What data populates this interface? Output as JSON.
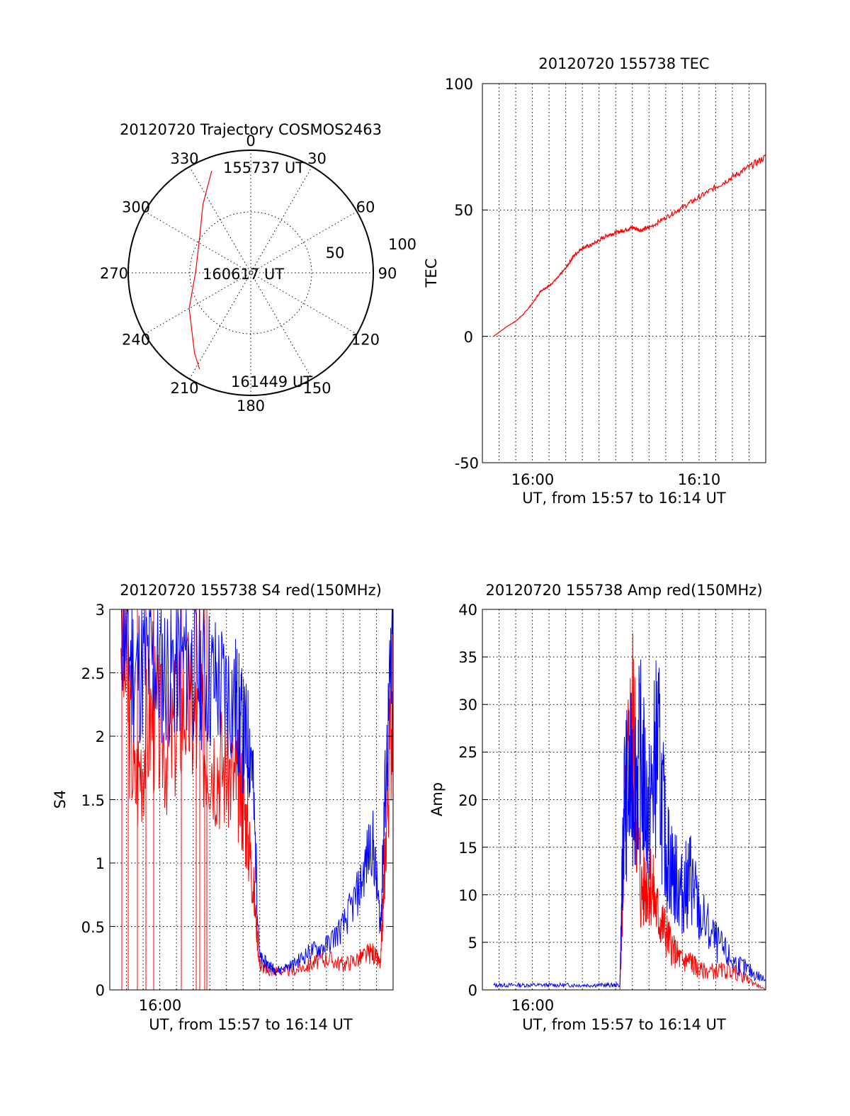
{
  "panels": {
    "trajectory": {
      "title": "20120720 Trajectory COSMOS2463",
      "azimuth_labels": [
        "0",
        "30",
        "60",
        "90",
        "120",
        "150",
        "180",
        "210",
        "240",
        "270",
        "300",
        "330"
      ],
      "radial_labels": [
        "50",
        "100"
      ],
      "start_time": "155737 UT",
      "mid_time": "160617 UT",
      "end_time": "161449 UT"
    },
    "tec": {
      "title": "20120720 155738 TEC",
      "xlabel": "UT, from 15:57 to 16:14 UT",
      "ylabel": "TEC",
      "y_ticks": [
        "100",
        "50",
        "0",
        "-50"
      ],
      "x_ticks": [
        "16:00",
        "16:10"
      ]
    },
    "s4": {
      "title": "20120720 155738 S4 red(150MHz)",
      "xlabel": "UT, from 15:57 to 16:14 UT",
      "ylabel": "S4",
      "y_ticks": [
        "3",
        "2.5",
        "2",
        "1.5",
        "1",
        "0.5",
        "0"
      ],
      "x_ticks": [
        "16:00"
      ]
    },
    "amp": {
      "title": "20120720 155738 Amp red(150MHz)",
      "xlabel": "UT, from 15:57 to 16:14 UT",
      "ylabel": "Amp",
      "y_ticks": [
        "40",
        "35",
        "30",
        "25",
        "20",
        "15",
        "10",
        "5",
        "0"
      ],
      "x_ticks": [
        "16:00"
      ]
    }
  },
  "chart_data": [
    {
      "type": "polar",
      "title": "20120720 Trajectory COSMOS2463",
      "r_range": [
        0,
        100
      ],
      "grid": true,
      "series": [
        {
          "color": "#ff0000",
          "points": [
            [
              339,
              89
            ],
            [
              325,
              68
            ],
            [
              303,
              50
            ],
            [
              271,
              45
            ],
            [
              240,
              58
            ],
            [
              215,
              80
            ],
            [
              208,
              89
            ]
          ]
        }
      ]
    },
    {
      "type": "line",
      "title": "20120720 155738 TEC",
      "xlabel": "UT, from 15:57 to 16:14 UT",
      "ylabel": "TEC",
      "xlim": [
        "15:57:00",
        "16:14:00"
      ],
      "ylim": [
        -50,
        100
      ],
      "grid": true,
      "series": [
        {
          "color": "#ff0000",
          "x": [
            "15:57:40",
            "15:58:30",
            "15:59:00",
            "15:59:30",
            "16:00:00",
            "16:00:30",
            "16:01:00",
            "16:01:30",
            "16:02:00",
            "16:02:30",
            "16:03:00",
            "16:03:30",
            "16:04:00",
            "16:04:30",
            "16:05:00",
            "16:05:30",
            "16:06:00",
            "16:06:30",
            "16:07:00",
            "16:08:00",
            "16:09:00",
            "16:10:00",
            "16:11:00",
            "16:12:00",
            "16:13:00",
            "16:14:00"
          ],
          "y": [
            0,
            4,
            6,
            9,
            13,
            18,
            20,
            23,
            27,
            32,
            35,
            36,
            38,
            40,
            41,
            42,
            43,
            42,
            43,
            47,
            51,
            55,
            59,
            63,
            67,
            71
          ]
        }
      ]
    },
    {
      "type": "line",
      "title": "20120720 155738 S4 red(150MHz)",
      "xlabel": "UT, from 15:57 to 16:14 UT",
      "ylabel": "S4",
      "xlim": [
        "15:57:00",
        "16:14:00"
      ],
      "ylim": [
        0,
        3
      ],
      "grid": true,
      "series": [
        {
          "color": "#ff0000",
          "x": [
            "15:57:40",
            "15:58:30",
            "15:59:30",
            "16:00:30",
            "16:01:30",
            "16:02:30",
            "16:03:30",
            "16:04:30",
            "16:05:00",
            "16:05:30",
            "16:06:00",
            "16:06:30",
            "16:07:00",
            "16:08:00",
            "16:09:00",
            "16:10:00",
            "16:11:00",
            "16:12:00",
            "16:12:45",
            "16:13:15",
            "16:13:30",
            "16:14:00"
          ],
          "y": [
            3,
            1.6,
            2.2,
            1.9,
            2.3,
            2.0,
            1.8,
            1.7,
            1.5,
            1.0,
            0.2,
            0.15,
            0.15,
            0.15,
            0.2,
            0.25,
            0.2,
            0.25,
            0.3,
            0.2,
            1.0,
            2.5
          ]
        },
        {
          "color": "#0000ff",
          "x": [
            "15:57:40",
            "15:58:30",
            "15:59:30",
            "16:00:30",
            "16:01:30",
            "16:02:30",
            "16:03:30",
            "16:04:30",
            "16:05:00",
            "16:05:30",
            "16:06:00",
            "16:06:30",
            "16:07:00",
            "16:08:00",
            "16:09:00",
            "16:10:00",
            "16:11:00",
            "16:12:00",
            "16:12:45",
            "16:13:15",
            "16:13:30",
            "16:14:00"
          ],
          "y": [
            3,
            2.5,
            2.6,
            2.5,
            2.6,
            2.5,
            2.4,
            2.3,
            2.0,
            1.9,
            0.25,
            0.2,
            0.15,
            0.2,
            0.3,
            0.35,
            0.5,
            0.8,
            1.2,
            0.5,
            1.5,
            2.8
          ]
        }
      ]
    },
    {
      "type": "line",
      "title": "20120720 155738 Amp red(150MHz)",
      "xlabel": "UT, from 15:57 to 16:14 UT",
      "ylabel": "Amp",
      "xlim": [
        "15:57:00",
        "16:14:00"
      ],
      "ylim": [
        0,
        40
      ],
      "grid": true,
      "series": [
        {
          "color": "#ff0000",
          "x": [
            "16:05:15",
            "16:05:30",
            "16:06:00",
            "16:06:30",
            "16:07:00",
            "16:07:30",
            "16:08:00",
            "16:08:30",
            "16:09:00",
            "16:09:30",
            "16:10:00",
            "16:11:00",
            "16:12:00",
            "16:13:00",
            "16:14:00"
          ],
          "y": [
            0,
            15,
            29,
            10,
            12,
            8,
            6,
            4,
            3,
            3,
            2,
            2,
            2,
            1,
            0
          ]
        },
        {
          "color": "#0000ff",
          "x": [
            "15:57:40",
            "15:58:30",
            "15:59:30",
            "16:00:30",
            "16:01:30",
            "16:02:30",
            "16:03:30",
            "16:04:30",
            "16:05:15",
            "16:05:30",
            "16:06:00",
            "16:06:30",
            "16:07:00",
            "16:07:30",
            "16:08:00",
            "16:08:30",
            "16:09:00",
            "16:09:30",
            "16:10:00",
            "16:11:00",
            "16:12:00",
            "16:13:00",
            "16:14:00"
          ],
          "y": [
            0.5,
            0.5,
            0.5,
            0.5,
            0.5,
            0.5,
            0.5,
            0.5,
            0.5,
            20,
            22,
            24,
            18,
            26,
            15,
            12,
            10,
            12,
            8,
            5,
            3,
            2,
            1
          ]
        }
      ]
    }
  ]
}
